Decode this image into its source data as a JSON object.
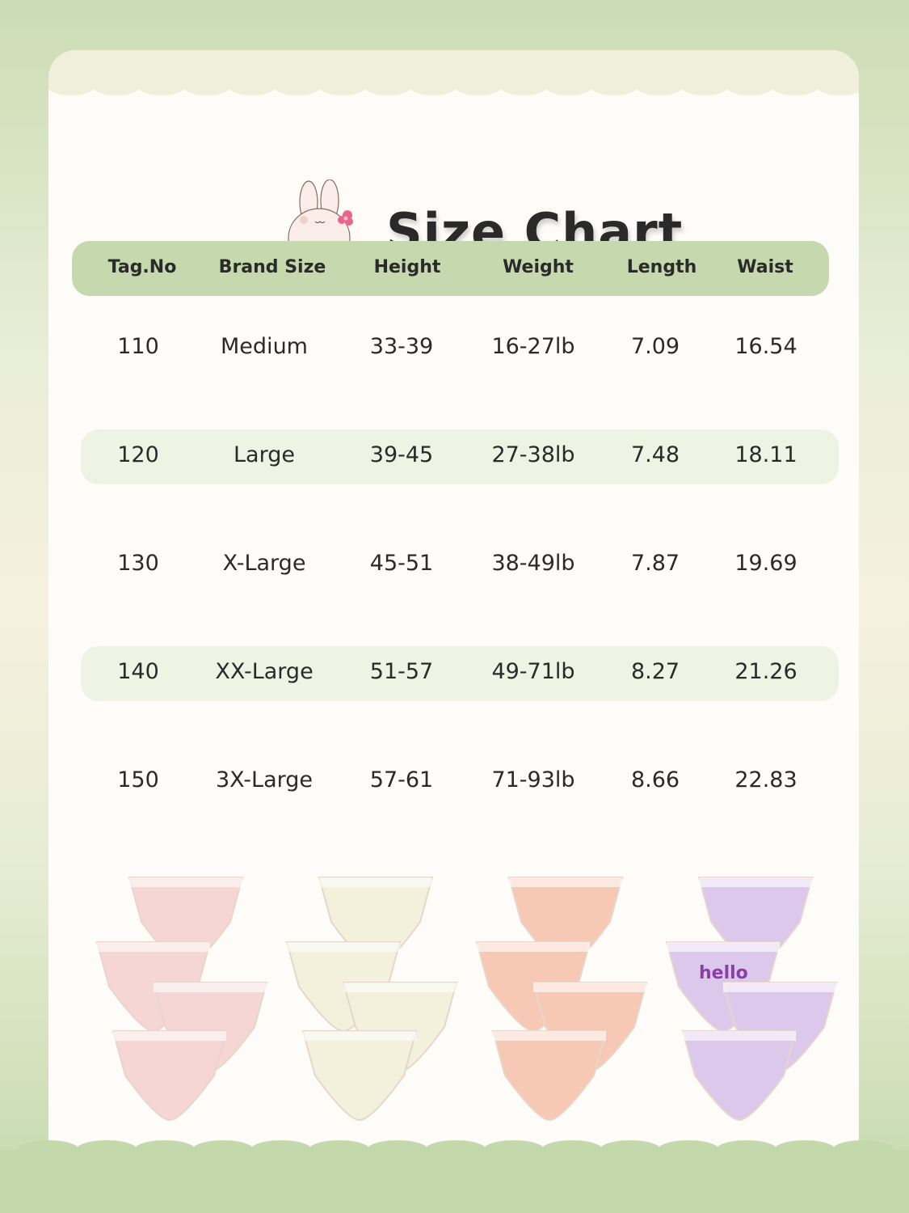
{
  "title": "Size Chart",
  "table": {
    "headers": [
      "Tag.No",
      "Brand Size",
      "Height",
      "Weight",
      "Length",
      "Waist"
    ],
    "rows": [
      [
        "110",
        "Medium",
        "33-39",
        "16-27lb",
        "7.09",
        "16.54"
      ],
      [
        "120",
        "Large",
        "39-45",
        "27-38lb",
        "7.48",
        "18.11"
      ],
      [
        "130",
        "X-Large",
        "45-51",
        "38-49lb",
        "7.87",
        "19.69"
      ],
      [
        "140",
        "XX-Large",
        "51-57",
        "49-71lb",
        "8.27",
        "21.26"
      ],
      [
        "150",
        "3X-Large",
        "57-61",
        "71-93lb",
        "8.66",
        "22.83"
      ]
    ]
  },
  "products": {
    "image_text": [
      "hello",
      "hello"
    ],
    "colors": [
      "#f6d6d4",
      "#f3f1dc",
      "#f7c9b4",
      "#dcc8ea"
    ]
  },
  "colors": {
    "header_green": "#c6d9ae",
    "row_shade": "#eef3e3",
    "background_green": "#cbdcb3",
    "card": "#fdfcf8"
  }
}
